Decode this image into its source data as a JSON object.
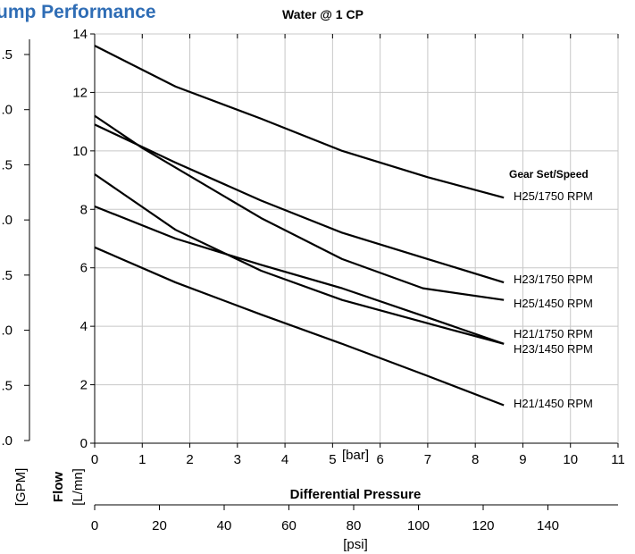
{
  "header": {
    "title": "ump Performance",
    "subtitle": "Water @ 1 CP"
  },
  "chart_data": {
    "type": "line",
    "x_unit_label": "[bar]",
    "x_secondary_unit_label": "[psi]",
    "x_axis_title": "Differential Pressure",
    "y_axis_title": "Flow",
    "y_unit_label": "[L/mn]",
    "y_secondary_unit_label": "[GPM]",
    "xlim": [
      0,
      11
    ],
    "ylim": [
      0,
      14
    ],
    "x_ticks": [
      "0",
      "1",
      "2",
      "3",
      "4",
      "5",
      "6",
      "7",
      "8",
      "9",
      "10",
      "11"
    ],
    "y_ticks": [
      "0",
      "2",
      "4",
      "6",
      "8",
      "10",
      "12",
      "14"
    ],
    "psi_ticks": [
      "0",
      "20",
      "40",
      "60",
      "80",
      "100",
      "120",
      "140"
    ],
    "gpm_ticks": [
      ".0",
      ".5",
      ".0",
      ".5",
      ".0",
      ".5",
      ".0",
      ".5"
    ],
    "grid": true,
    "legend_title": "Gear Set/Speed",
    "series": [
      {
        "name": "H25/1750 RPM",
        "x": [
          0,
          1.7,
          3.5,
          5.2,
          7.0,
          8.6
        ],
        "y": [
          13.6,
          12.2,
          11.1,
          10.0,
          9.1,
          8.4
        ]
      },
      {
        "name": "H23/1750 RPM",
        "x": [
          0,
          1.0,
          3.5,
          5.2,
          6.9,
          8.6
        ],
        "y": [
          11.2,
          10.1,
          7.7,
          6.3,
          5.3,
          4.9
        ]
      },
      {
        "name": "H25/1450 RPM",
        "x": [
          0,
          1.7,
          3.5,
          5.2,
          7.0,
          8.6
        ],
        "y": [
          10.9,
          9.6,
          8.3,
          7.2,
          6.3,
          5.5
        ]
      },
      {
        "name": "H21/1750 RPM",
        "x": [
          0,
          1.7,
          3.5,
          5.2,
          7.0,
          8.6
        ],
        "y": [
          9.2,
          7.3,
          5.9,
          4.9,
          4.1,
          3.4
        ]
      },
      {
        "name": "H23/1450 RPM",
        "x": [
          0,
          1.7,
          3.5,
          5.2,
          7.0,
          8.6
        ],
        "y": [
          8.1,
          7.0,
          6.1,
          5.3,
          4.3,
          3.4
        ]
      },
      {
        "name": "H21/1450 RPM",
        "x": [
          0,
          1.7,
          3.5,
          5.2,
          7.0,
          8.6
        ],
        "y": [
          6.7,
          5.5,
          4.4,
          3.4,
          2.3,
          1.3
        ]
      }
    ]
  }
}
